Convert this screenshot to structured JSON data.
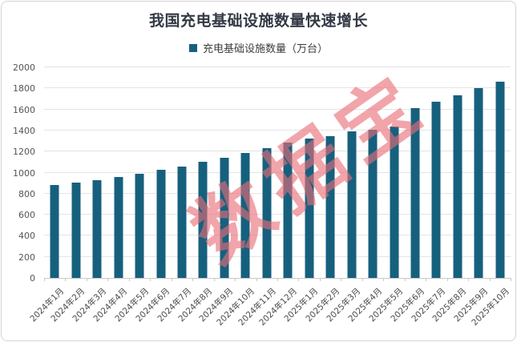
{
  "title": "我国充电基础设施数量快速增长",
  "legend": {
    "label": "充电基础设施数量（万台）",
    "marker_color": "#16607E"
  },
  "watermark": "数据宝",
  "colors": {
    "bar": "#16607E",
    "title_text": "#333A45",
    "axis_text": "#555555",
    "gridline": "#E4E4E4",
    "axis_line": "#C9C9C9",
    "watermark": "rgba(232,110,120,0.62)",
    "frame_border": "#D4D4D4"
  },
  "chart_data": {
    "type": "bar",
    "title": "我国充电基础设施数量快速增长",
    "legend_entries": [
      "充电基础设施数量（万台）"
    ],
    "legend_position": "top",
    "grid": true,
    "categories": [
      "2024年1月",
      "2024年2月",
      "2024年3月",
      "2024年4月",
      "2024年5月",
      "2024年6月",
      "2024年7月",
      "2024年8月",
      "2024年9月",
      "2024年10月",
      "2024年11月",
      "2024年12月",
      "2025年1月",
      "2025年2月",
      "2025年3月",
      "2025年4月",
      "2025年5月",
      "2025年6月",
      "2025年7月",
      "2025年8月",
      "2025年9月",
      "2025年10月"
    ],
    "values": [
      886,
      902,
      931,
      961,
      992,
      1024,
      1060,
      1099,
      1143,
      1188,
      1235,
      1282,
      1320,
      1345,
      1390,
      1408,
      1440,
      1610,
      1670,
      1735,
      1806,
      1865
    ],
    "xlabel": "",
    "ylabel": "",
    "ylim": [
      0,
      2000
    ],
    "yticks": [
      0,
      200,
      400,
      600,
      800,
      1000,
      1200,
      1400,
      1600,
      1800,
      2000
    ]
  }
}
